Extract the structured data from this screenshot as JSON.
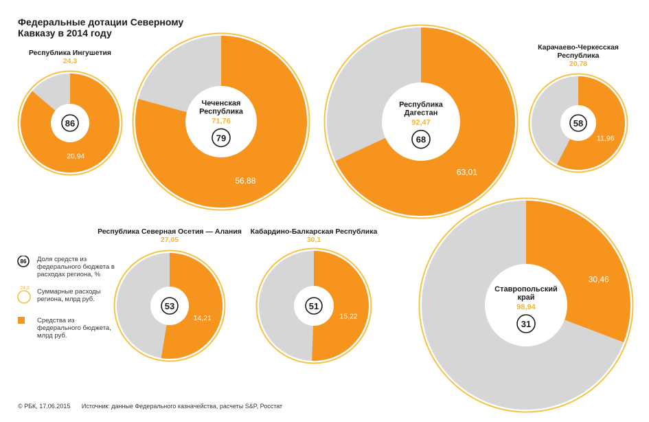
{
  "title": "Федеральные дотации Северному Кавказу в 2014 году",
  "colors": {
    "orange": "#F7941D",
    "gray": "#D6D6D6",
    "ring": "#F7C244",
    "dark": "#1a1a1a"
  },
  "legend": {
    "share_sample": "86",
    "share_label": "Доля средств из федерального бюджета в расходах региона, %",
    "total_sample": "24,3",
    "total_label": "Суммарные расходы региона, млрд руб.",
    "federal_label": "Средства из федерального бюджета, млрд руб."
  },
  "footer": {
    "copyright": "© РБК, 17.06.2015",
    "source": "Источник: данные Федерального казначейства, расчеты S&P, Росстат"
  },
  "chart_data": {
    "type": "pie",
    "regions": [
      {
        "name": "Республика Ингушетия",
        "total": 24.3,
        "total_label": "24,3",
        "federal": 20.94,
        "federal_label": "20,94",
        "share": 86,
        "label_position": "above"
      },
      {
        "name": "Чеченская Республика",
        "total": 71.76,
        "total_label": "71,76",
        "federal": 56.88,
        "federal_label": "56,88",
        "share": 79,
        "label_position": "inside"
      },
      {
        "name": "Республика Дагестан",
        "total": 92.47,
        "total_label": "92,47",
        "federal": 63.01,
        "federal_label": "63,01",
        "share": 68,
        "label_position": "inside"
      },
      {
        "name": "Карачаево-Черкесская Республика",
        "total": 20.78,
        "total_label": "20,78",
        "federal": 11.96,
        "federal_label": "11,96",
        "share": 58,
        "label_position": "above"
      },
      {
        "name": "Республика Северная Осетия — Алания",
        "total": 27.05,
        "total_label": "27,05",
        "federal": 14.21,
        "federal_label": "14,21",
        "share": 53,
        "label_position": "above"
      },
      {
        "name": "Кабардино-Балкарская Республика",
        "total": 30.1,
        "total_label": "30,1",
        "federal": 15.22,
        "federal_label": "15,22",
        "share": 51,
        "label_position": "above"
      },
      {
        "name": "Ставропольский край",
        "total": 98.94,
        "total_label": "98,94",
        "federal": 30.46,
        "federal_label": "30,46",
        "share": 31,
        "label_position": "inside"
      }
    ]
  }
}
